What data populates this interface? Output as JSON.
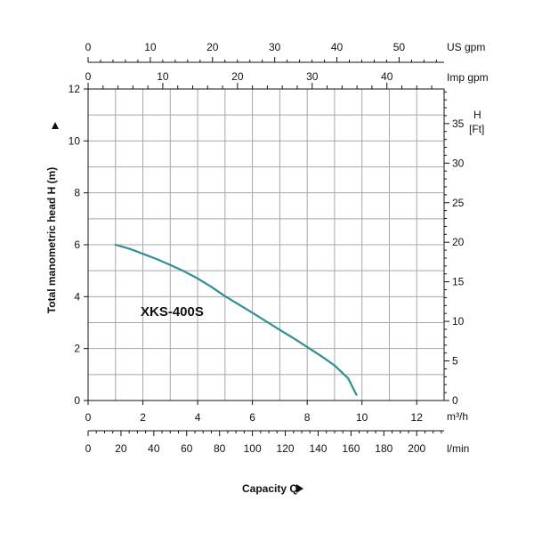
{
  "chart_data": {
    "type": "line",
    "x_axis": {
      "unit": "m³/h",
      "range": [
        0,
        13
      ],
      "ticks": [
        0,
        2,
        4,
        6,
        8,
        10,
        12
      ],
      "tick_labels": [
        "0",
        "2",
        "4",
        "6",
        "8",
        "10",
        "12"
      ]
    },
    "y_axis": {
      "label": "Total manometric head H (m)",
      "range": [
        0,
        12
      ],
      "ticks": [
        0,
        2,
        4,
        6,
        8,
        10,
        12
      ],
      "tick_labels": [
        "0",
        "2",
        "4",
        "6",
        "8",
        "10",
        "12"
      ]
    },
    "secondary_axes": {
      "us_gpm": {
        "unit": "US  gpm",
        "ticks": [
          0,
          10,
          20,
          30,
          40,
          50
        ],
        "tick_labels": [
          "0",
          "10",
          "20",
          "30",
          "40",
          "50"
        ]
      },
      "imp_gpm": {
        "unit": "Imp gpm",
        "ticks": [
          0,
          10,
          20,
          30,
          40
        ],
        "tick_labels": [
          "0",
          "10",
          "20",
          "30",
          "40"
        ]
      },
      "head_ft": {
        "unit_line1": "H",
        "unit_line2": "[Ft]",
        "ticks": [
          0,
          5,
          10,
          15,
          20,
          25,
          30,
          35
        ],
        "tick_labels": [
          "0",
          "5",
          "10",
          "15",
          "20",
          "25",
          "30",
          "35"
        ]
      },
      "l_min": {
        "unit": "l/min",
        "ticks": [
          0,
          20,
          40,
          60,
          80,
          100,
          120,
          140,
          160,
          180,
          200
        ],
        "tick_labels": [
          "0",
          "20",
          "40",
          "60",
          "80",
          "100",
          "120",
          "140",
          "160",
          "180",
          "200"
        ]
      }
    },
    "x_title": "Capacity Q",
    "series": [
      {
        "name": "XKS-400S",
        "color": "#2f8f96",
        "x": [
          1.0,
          1.5,
          2.0,
          2.5,
          3.0,
          3.5,
          4.0,
          4.5,
          5.0,
          5.5,
          6.0,
          6.5,
          7.0,
          7.5,
          8.0,
          8.5,
          9.0,
          9.5,
          9.8
        ],
        "y": [
          6.0,
          5.85,
          5.65,
          5.45,
          5.22,
          4.98,
          4.7,
          4.38,
          4.02,
          3.7,
          3.38,
          3.05,
          2.72,
          2.4,
          2.06,
          1.72,
          1.35,
          0.85,
          0.22
        ]
      }
    ],
    "grid": true
  }
}
